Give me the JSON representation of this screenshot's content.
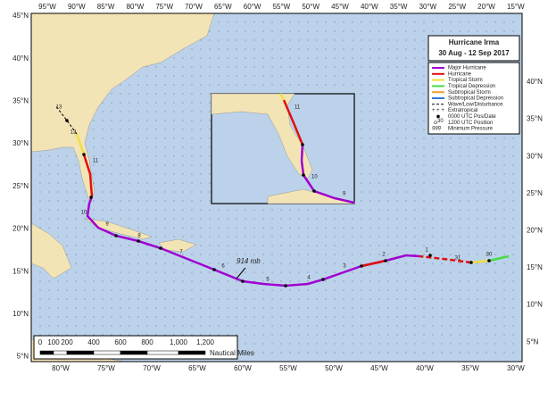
{
  "title": [
    "Hurricane Irma",
    "30 Aug - 12 Sep 2017"
  ],
  "lon_top": [
    "95°W",
    "90°W",
    "85°W",
    "80°W",
    "75°W",
    "70°W",
    "65°W",
    "60°W",
    "55°W",
    "50°W",
    "45°W",
    "40°W",
    "35°W",
    "30°W",
    "25°W",
    "20°W",
    "15°W"
  ],
  "lon_bottom": [
    "80°W",
    "75°W",
    "70°W",
    "65°W",
    "60°W",
    "55°W",
    "50°W",
    "45°W",
    "40°W",
    "35°W",
    "30°W"
  ],
  "lat_left": [
    "45°N",
    "40°N",
    "35°N",
    "30°N",
    "25°N",
    "20°N",
    "15°N",
    "10°N",
    "5°N"
  ],
  "lat_right": [
    "40°N",
    "35°N",
    "30°N",
    "25°N",
    "20°N",
    "15°N",
    "10°N",
    "5°N"
  ],
  "legend": [
    "Major Hurricane",
    "Hurricane",
    "Tropical Storm",
    "Tropical Depression",
    "Subtropical Storm",
    "Subtropical Depression",
    "Wave/Low/Disturbance",
    "Extratropical",
    "0000 UTC Pos/Date",
    "1200 UTC Position",
    "Minimum Pressure"
  ],
  "legend_symbols": {
    "position_date": "30",
    "pressure": "999"
  },
  "day_labels": [
    "30",
    "31",
    "1",
    "2",
    "3",
    "4",
    "5",
    "6",
    "7",
    "8",
    "9",
    "10",
    "11",
    "12",
    "13"
  ],
  "inset_labels": [
    "11",
    "10",
    "9"
  ],
  "pressure": "914 mb",
  "scale": {
    "ticks": [
      "0",
      "100",
      "200",
      "400",
      "600",
      "800",
      "1,000",
      "1,200"
    ],
    "unit": "Nautical Miles"
  }
}
